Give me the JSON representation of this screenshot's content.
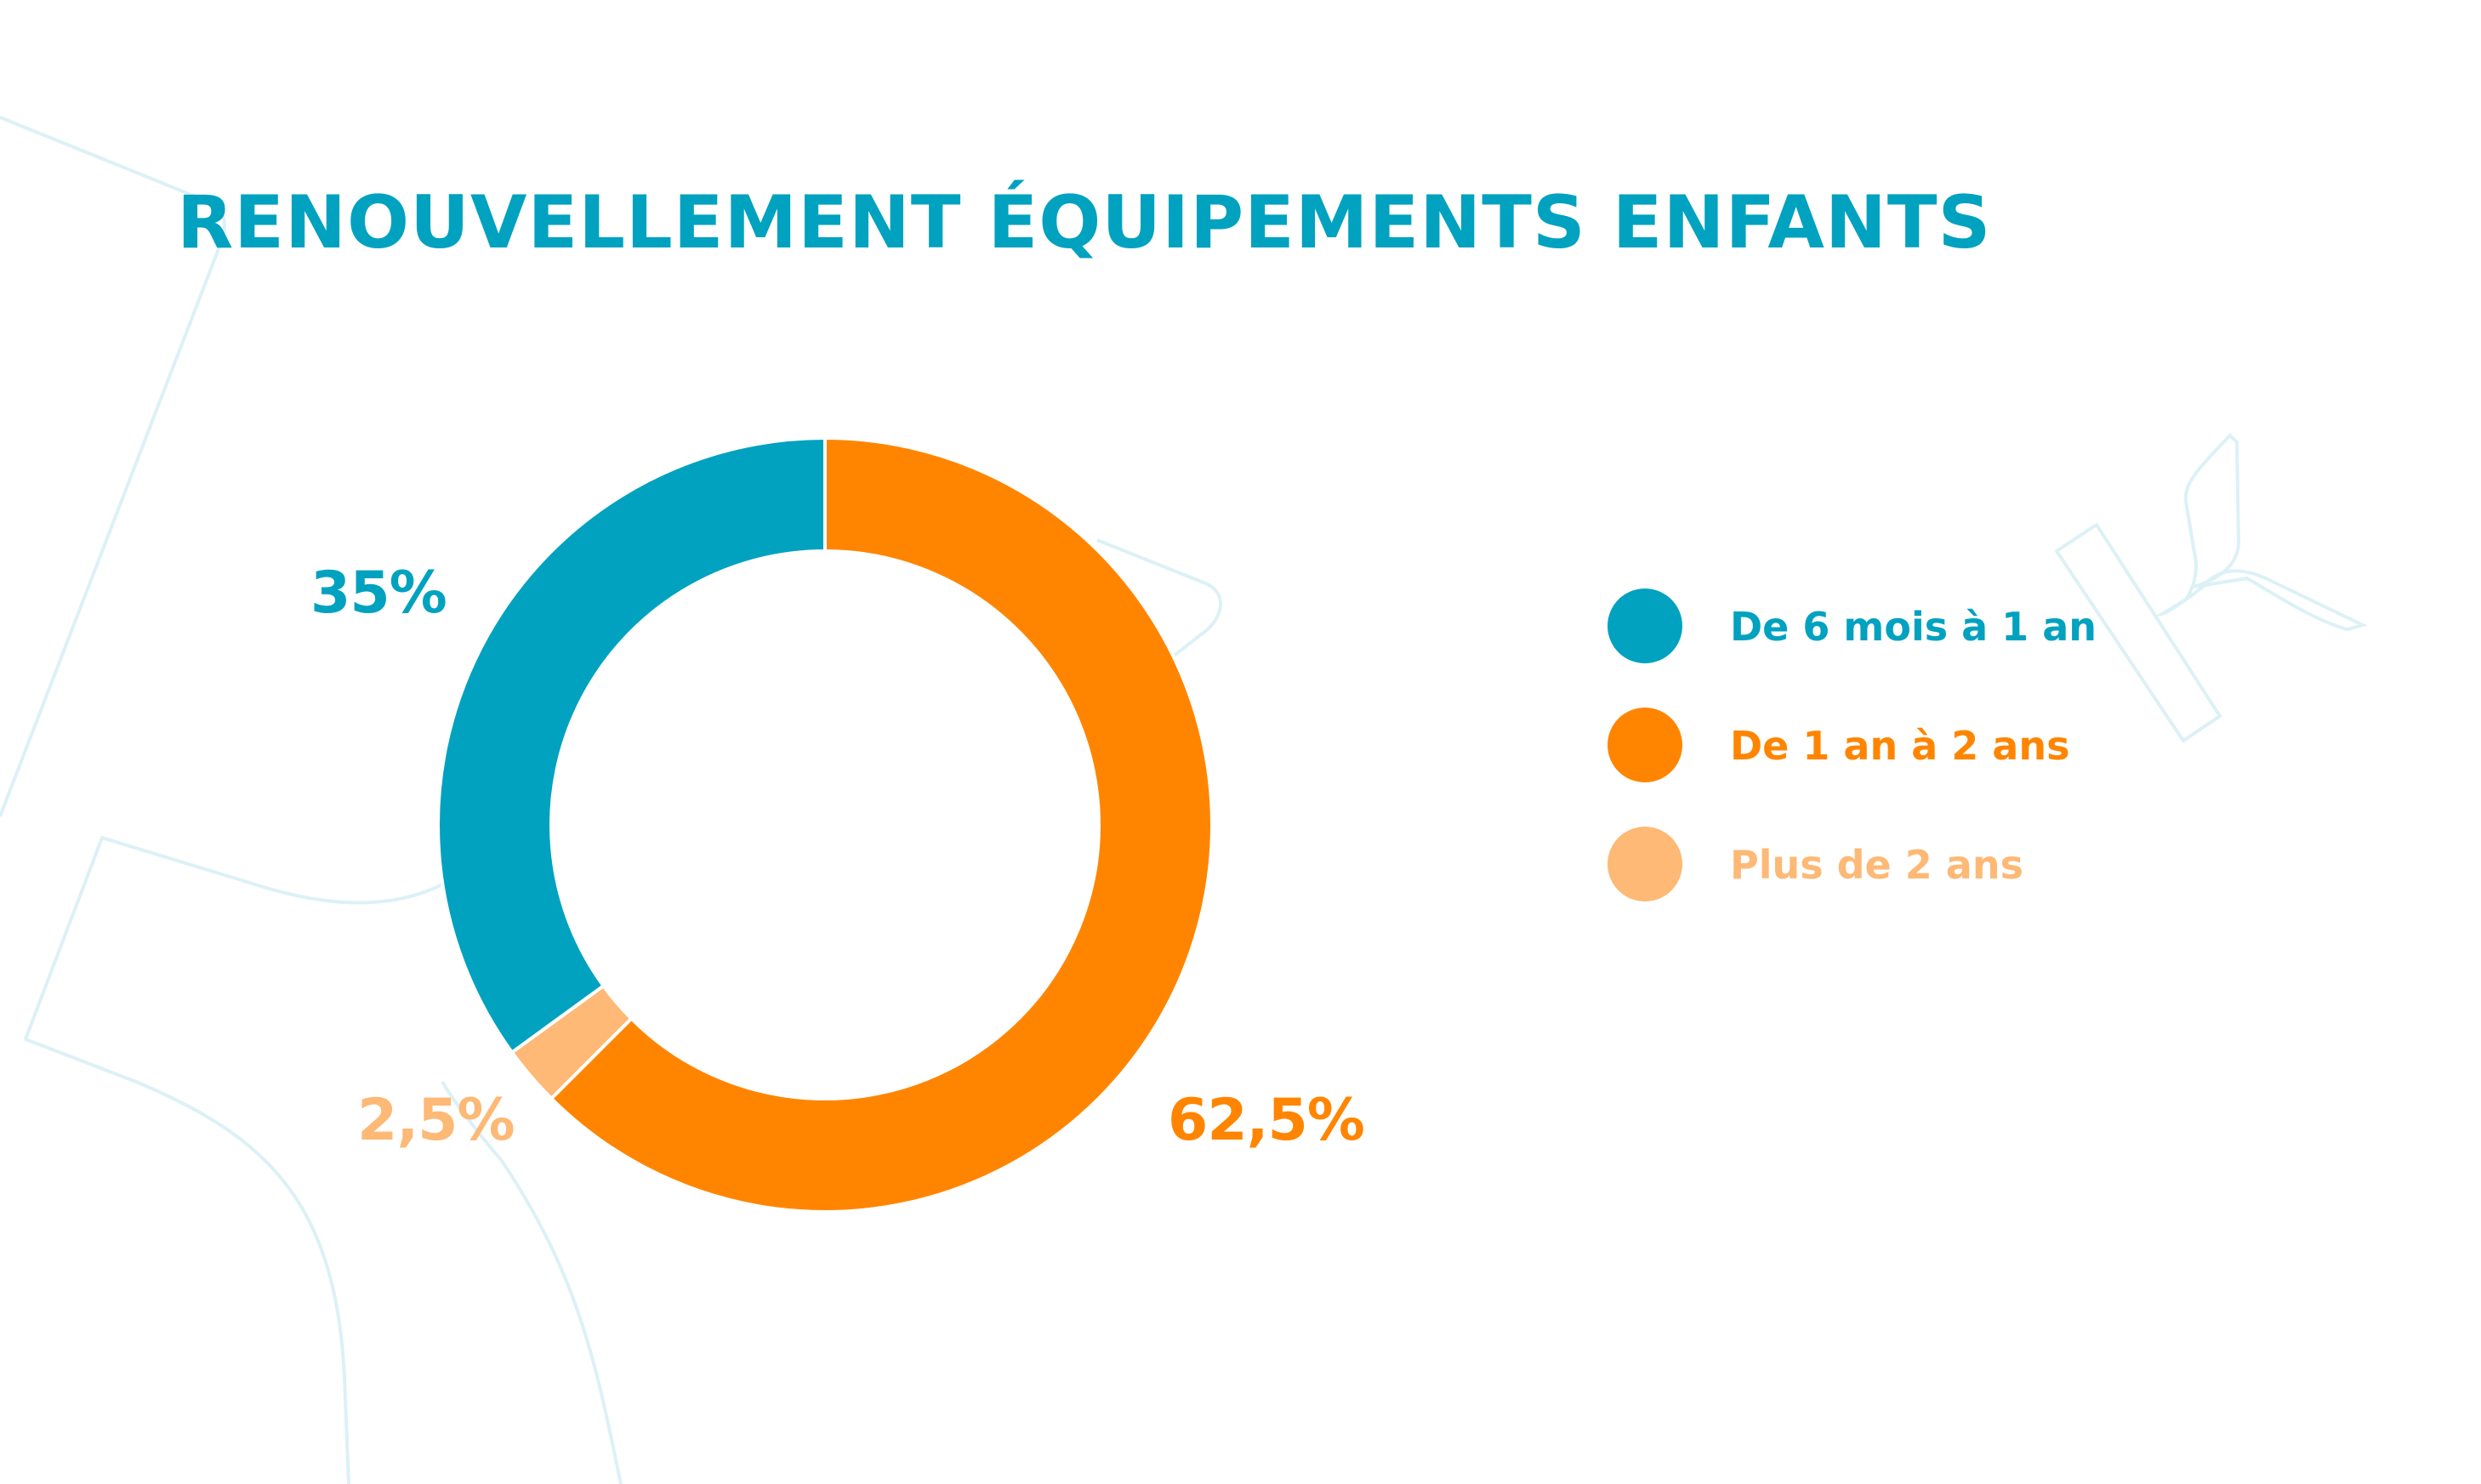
{
  "title": "RENOUVELLEMENT ÉQUIPEMENTS ENFANTS",
  "colors": {
    "title": "#00A2BF",
    "watermark": "#DCF1F6"
  },
  "chart_data": {
    "type": "pie",
    "title": "RENOUVELLEMENT ÉQUIPEMENTS ENFANTS",
    "legend_position": "right",
    "slices": [
      {
        "label": "De 1 an à 2 ans",
        "value": 62.5,
        "display": "62,5%",
        "color": "#FF8500"
      },
      {
        "label": "Plus de 2 ans",
        "value": 2.5,
        "display": "2,5%",
        "color": "#FDB975"
      },
      {
        "label": "De 6 mois à 1 an",
        "value": 35,
        "display": "35%",
        "color": "#00A2BF"
      }
    ],
    "legend_order": [
      2,
      0,
      1
    ]
  }
}
